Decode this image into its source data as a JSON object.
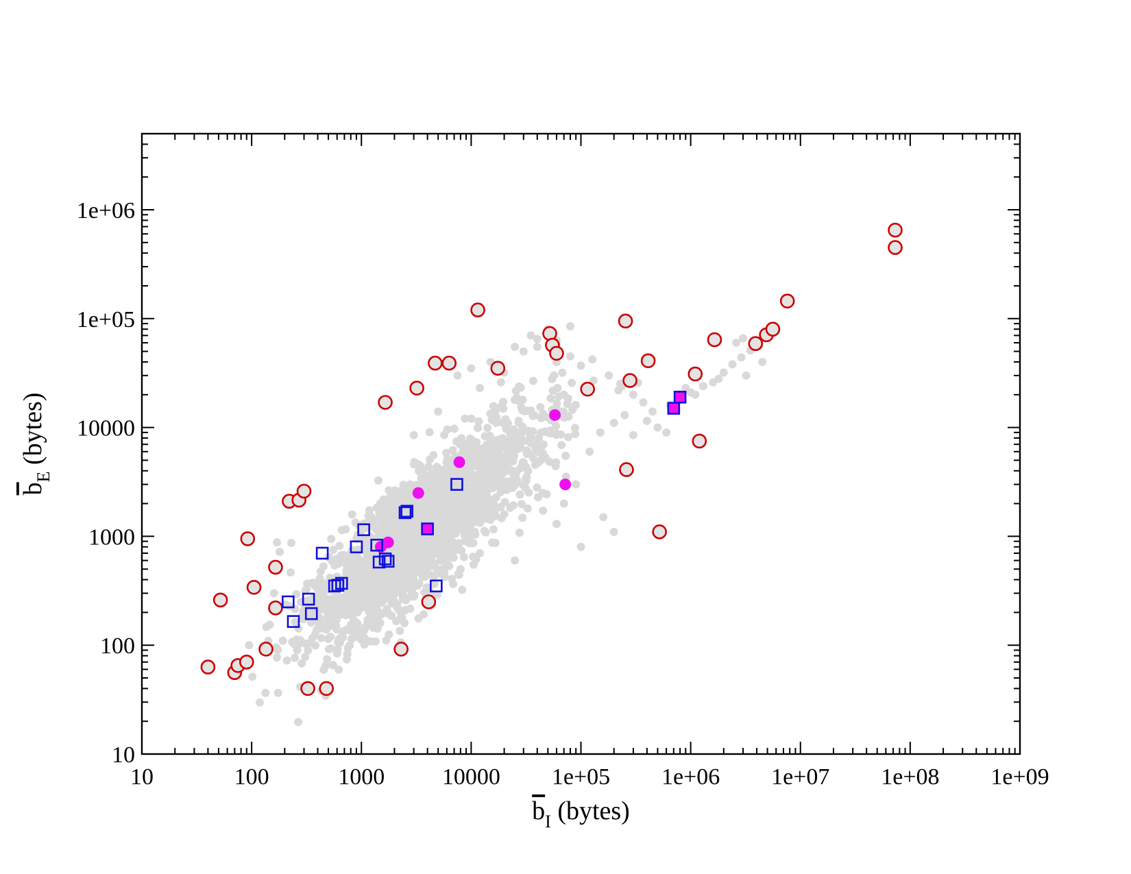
{
  "chart_data": {
    "type": "scatter",
    "title": "",
    "x_scale": "log",
    "y_scale": "log",
    "xlim": [
      10,
      1000000000
    ],
    "ylim": [
      10,
      5000000
    ],
    "grid": false,
    "legend": "none",
    "xlabel": {
      "main": "b",
      "sub": "I",
      "suffix": " (bytes)",
      "overline": true
    },
    "ylabel": {
      "main": "b",
      "sub": "E",
      "suffix": " (bytes)",
      "overline": true
    },
    "x_ticks": [
      {
        "value": 10,
        "label": "10"
      },
      {
        "value": 100,
        "label": "100"
      },
      {
        "value": 1000,
        "label": "1000"
      },
      {
        "value": 10000,
        "label": "10000"
      },
      {
        "value": 100000,
        "label": "1e+05"
      },
      {
        "value": 1000000,
        "label": "1e+06"
      },
      {
        "value": 10000000,
        "label": "1e+07"
      },
      {
        "value": 100000000,
        "label": "1e+08"
      },
      {
        "value": 1000000000,
        "label": "1e+09"
      }
    ],
    "y_ticks": [
      {
        "value": 10,
        "label": "10"
      },
      {
        "value": 100,
        "label": "100"
      },
      {
        "value": 1000,
        "label": "1000"
      },
      {
        "value": 10000,
        "label": "10000"
      },
      {
        "value": 100000,
        "label": "1e+05"
      },
      {
        "value": 1000000,
        "label": "1e+06"
      }
    ],
    "colors": {
      "background_points": "#d9d9d9",
      "circle_outline": "#cc0000",
      "circle_fill": "#e3e3e3",
      "square_outline": "#1010dd",
      "magenta": "#ee11ee"
    },
    "series": [
      {
        "marker": "filled-dot",
        "color": "#d9d9d9",
        "generated_cloud": {
          "center_log10": [
            3.55,
            3.05
          ],
          "main_axis": [
            0.72,
            0.69
          ],
          "spread_main": 0.72,
          "spread_perp": 0.2,
          "count": 2200,
          "seed": 7
        },
        "points": [
          [
            230,
            870
          ],
          [
            170,
            880
          ],
          [
            180,
            720
          ],
          [
            160,
            300
          ],
          [
            260,
            90
          ],
          [
            330,
            250
          ],
          [
            1500,
            190
          ],
          [
            2000,
            2300
          ],
          [
            3000,
            8500
          ],
          [
            5000,
            14000
          ],
          [
            7500,
            30000
          ],
          [
            12000,
            23000
          ],
          [
            20000,
            32000
          ],
          [
            30000,
            50000
          ],
          [
            40000,
            65000
          ],
          [
            40000,
            55000
          ],
          [
            60000,
            58000
          ],
          [
            60000,
            63000
          ],
          [
            80000,
            45000
          ],
          [
            100000,
            37000
          ],
          [
            130000,
            27000
          ],
          [
            220000,
            22000
          ],
          [
            280000,
            28000
          ],
          [
            300000,
            20000
          ],
          [
            370000,
            17000
          ],
          [
            450000,
            14000
          ],
          [
            500000,
            10000
          ],
          [
            600000,
            9000
          ],
          [
            120000,
            6000
          ],
          [
            150000,
            9000
          ],
          [
            200000,
            11000
          ],
          [
            250000,
            13000
          ],
          [
            300000,
            8500
          ],
          [
            400000,
            11500
          ],
          [
            650000,
            16000
          ],
          [
            900000,
            23000
          ],
          [
            1000000,
            21000
          ],
          [
            1300000,
            24000
          ],
          [
            1600000,
            26000
          ],
          [
            2000000,
            32000
          ],
          [
            2400000,
            38000
          ],
          [
            2900000,
            44000
          ],
          [
            3500000,
            51000
          ],
          [
            4200000,
            56000
          ],
          [
            4500000,
            40000
          ],
          [
            3200000,
            30000
          ],
          [
            2600000,
            60000
          ],
          [
            3000000,
            66000
          ],
          [
            1800000,
            28000
          ],
          [
            1100000,
            20000
          ],
          [
            70000,
            20000
          ],
          [
            60000,
            15000
          ],
          [
            50000,
            9000
          ],
          [
            40000,
            7000
          ],
          [
            90000,
            3000
          ],
          [
            70000,
            2000
          ],
          [
            160000,
            1500
          ],
          [
            200000,
            1100
          ],
          [
            100000,
            800
          ],
          [
            25000,
            600
          ],
          [
            32000,
            3500
          ],
          [
            45000,
            2500
          ],
          [
            60000,
            1300
          ],
          [
            12000,
            700
          ],
          [
            20000,
            1600
          ],
          [
            8000,
            500
          ],
          [
            6000,
            600
          ],
          [
            2200,
            350
          ],
          [
            1300,
            300
          ],
          [
            800,
            220
          ],
          [
            600,
            180
          ],
          [
            400,
            200
          ],
          [
            2000,
            240
          ],
          [
            50000,
            80000
          ],
          [
            25000,
            55000
          ],
          [
            15000,
            40000
          ],
          [
            10000,
            35000
          ],
          [
            35000,
            70000
          ],
          [
            80000,
            85000
          ]
        ]
      },
      {
        "marker": "open-circle",
        "color": "#cc0000",
        "points": [
          [
            40,
            63
          ],
          [
            52,
            260
          ],
          [
            70,
            56
          ],
          [
            75,
            65
          ],
          [
            90,
            70
          ],
          [
            92,
            950
          ],
          [
            105,
            340
          ],
          [
            135,
            92
          ],
          [
            165,
            220
          ],
          [
            165,
            520
          ],
          [
            220,
            2100
          ],
          [
            270,
            2150
          ],
          [
            300,
            2600
          ],
          [
            325,
            40
          ],
          [
            480,
            40
          ],
          [
            1650,
            17000
          ],
          [
            2300,
            92
          ],
          [
            3200,
            23000
          ],
          [
            4100,
            250
          ],
          [
            4700,
            39000
          ],
          [
            6300,
            39000
          ],
          [
            11500,
            120000
          ],
          [
            17500,
            35000
          ],
          [
            52000,
            73000
          ],
          [
            55000,
            57000
          ],
          [
            60000,
            48000
          ],
          [
            115000,
            22500
          ],
          [
            255000,
            95000
          ],
          [
            280000,
            27000
          ],
          [
            260000,
            4100
          ],
          [
            410000,
            41000
          ],
          [
            520000,
            1100
          ],
          [
            1100000,
            31000
          ],
          [
            1200000,
            7500
          ],
          [
            1650000,
            64000
          ],
          [
            3900000,
            59000
          ],
          [
            4900000,
            71000
          ],
          [
            5600000,
            80000
          ],
          [
            7600000,
            145000
          ],
          [
            73000000,
            650000
          ],
          [
            73000000,
            450000
          ]
        ]
      },
      {
        "marker": "filled-circle",
        "color": "#ee11ee",
        "points": [
          [
            1500,
            800
          ],
          [
            1750,
            880
          ],
          [
            3300,
            2500
          ],
          [
            7800,
            4800
          ],
          [
            58000,
            13000
          ],
          [
            72000,
            3000
          ]
        ]
      },
      {
        "marker": "open-square",
        "color": "#1010dd",
        "points": [
          [
            215,
            250
          ],
          [
            240,
            165
          ],
          [
            330,
            265
          ],
          [
            350,
            195
          ],
          [
            440,
            700
          ],
          [
            570,
            350
          ],
          [
            610,
            355
          ],
          [
            660,
            370
          ],
          [
            900,
            800
          ],
          [
            1050,
            1150
          ],
          [
            1380,
            830
          ],
          [
            1450,
            580
          ],
          [
            1650,
            620
          ],
          [
            1750,
            590
          ],
          [
            2500,
            1650
          ],
          [
            2600,
            1700
          ],
          [
            4800,
            350
          ],
          [
            7400,
            3000
          ]
        ]
      },
      {
        "marker": "filled-square",
        "color": "#ee11ee",
        "edge": "#1010dd",
        "points": [
          [
            4000,
            1170
          ],
          [
            700000,
            15000
          ],
          [
            800000,
            19000
          ]
        ]
      }
    ]
  }
}
